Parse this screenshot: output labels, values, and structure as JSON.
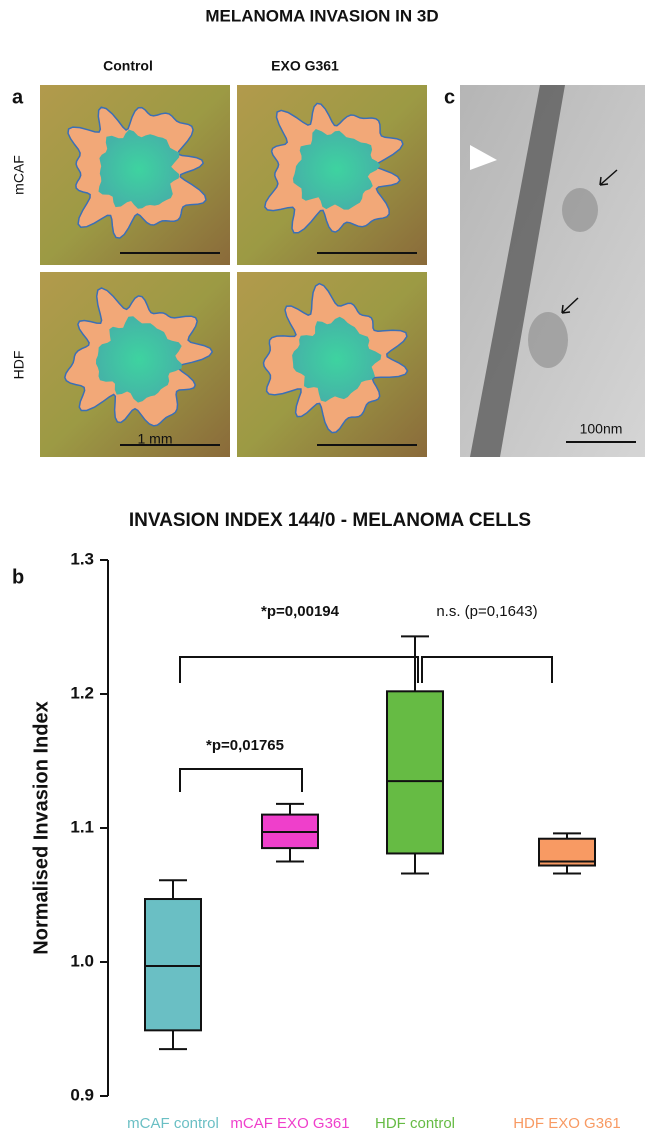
{
  "figure": {
    "title": "MELANOMA INVASION IN 3D",
    "panel_a": "a",
    "panel_b": "b",
    "panel_c": "c",
    "columns": [
      "Control",
      "EXO G361"
    ],
    "rows": [
      "mCAF",
      "HDF"
    ],
    "scale_a": "1 mm",
    "scale_c": "100nm"
  },
  "chart_data": {
    "type": "box",
    "title": "INVASION INDEX  144/0 - MELANOMA CELLS",
    "y_label": "Normalised Invasion Index",
    "categories": [
      "mCAF control",
      "mCAF EXO G361",
      "HDF control",
      "HDF EXO G361"
    ],
    "colors": [
      "#6abfc4",
      "#ef3fcb",
      "#66bb44",
      "#f89a63"
    ],
    "min": [
      0.935,
      1.075,
      1.066,
      1.066
    ],
    "q1": [
      0.949,
      1.085,
      1.081,
      1.072
    ],
    "median": [
      0.997,
      1.097,
      1.135,
      1.075
    ],
    "q3": [
      1.047,
      1.11,
      1.202,
      1.092
    ],
    "max": [
      1.061,
      1.118,
      1.243,
      1.096
    ],
    "ylim": [
      0.9,
      1.3
    ],
    "yticks": [
      0.9,
      {
        "value": 1,
        "label": "1.0"
      },
      1.1,
      1.2,
      1.3
    ],
    "annotations": [
      "*p=0,00194",
      "n.s. (p=0,1643)",
      "*p=0,01765"
    ]
  }
}
